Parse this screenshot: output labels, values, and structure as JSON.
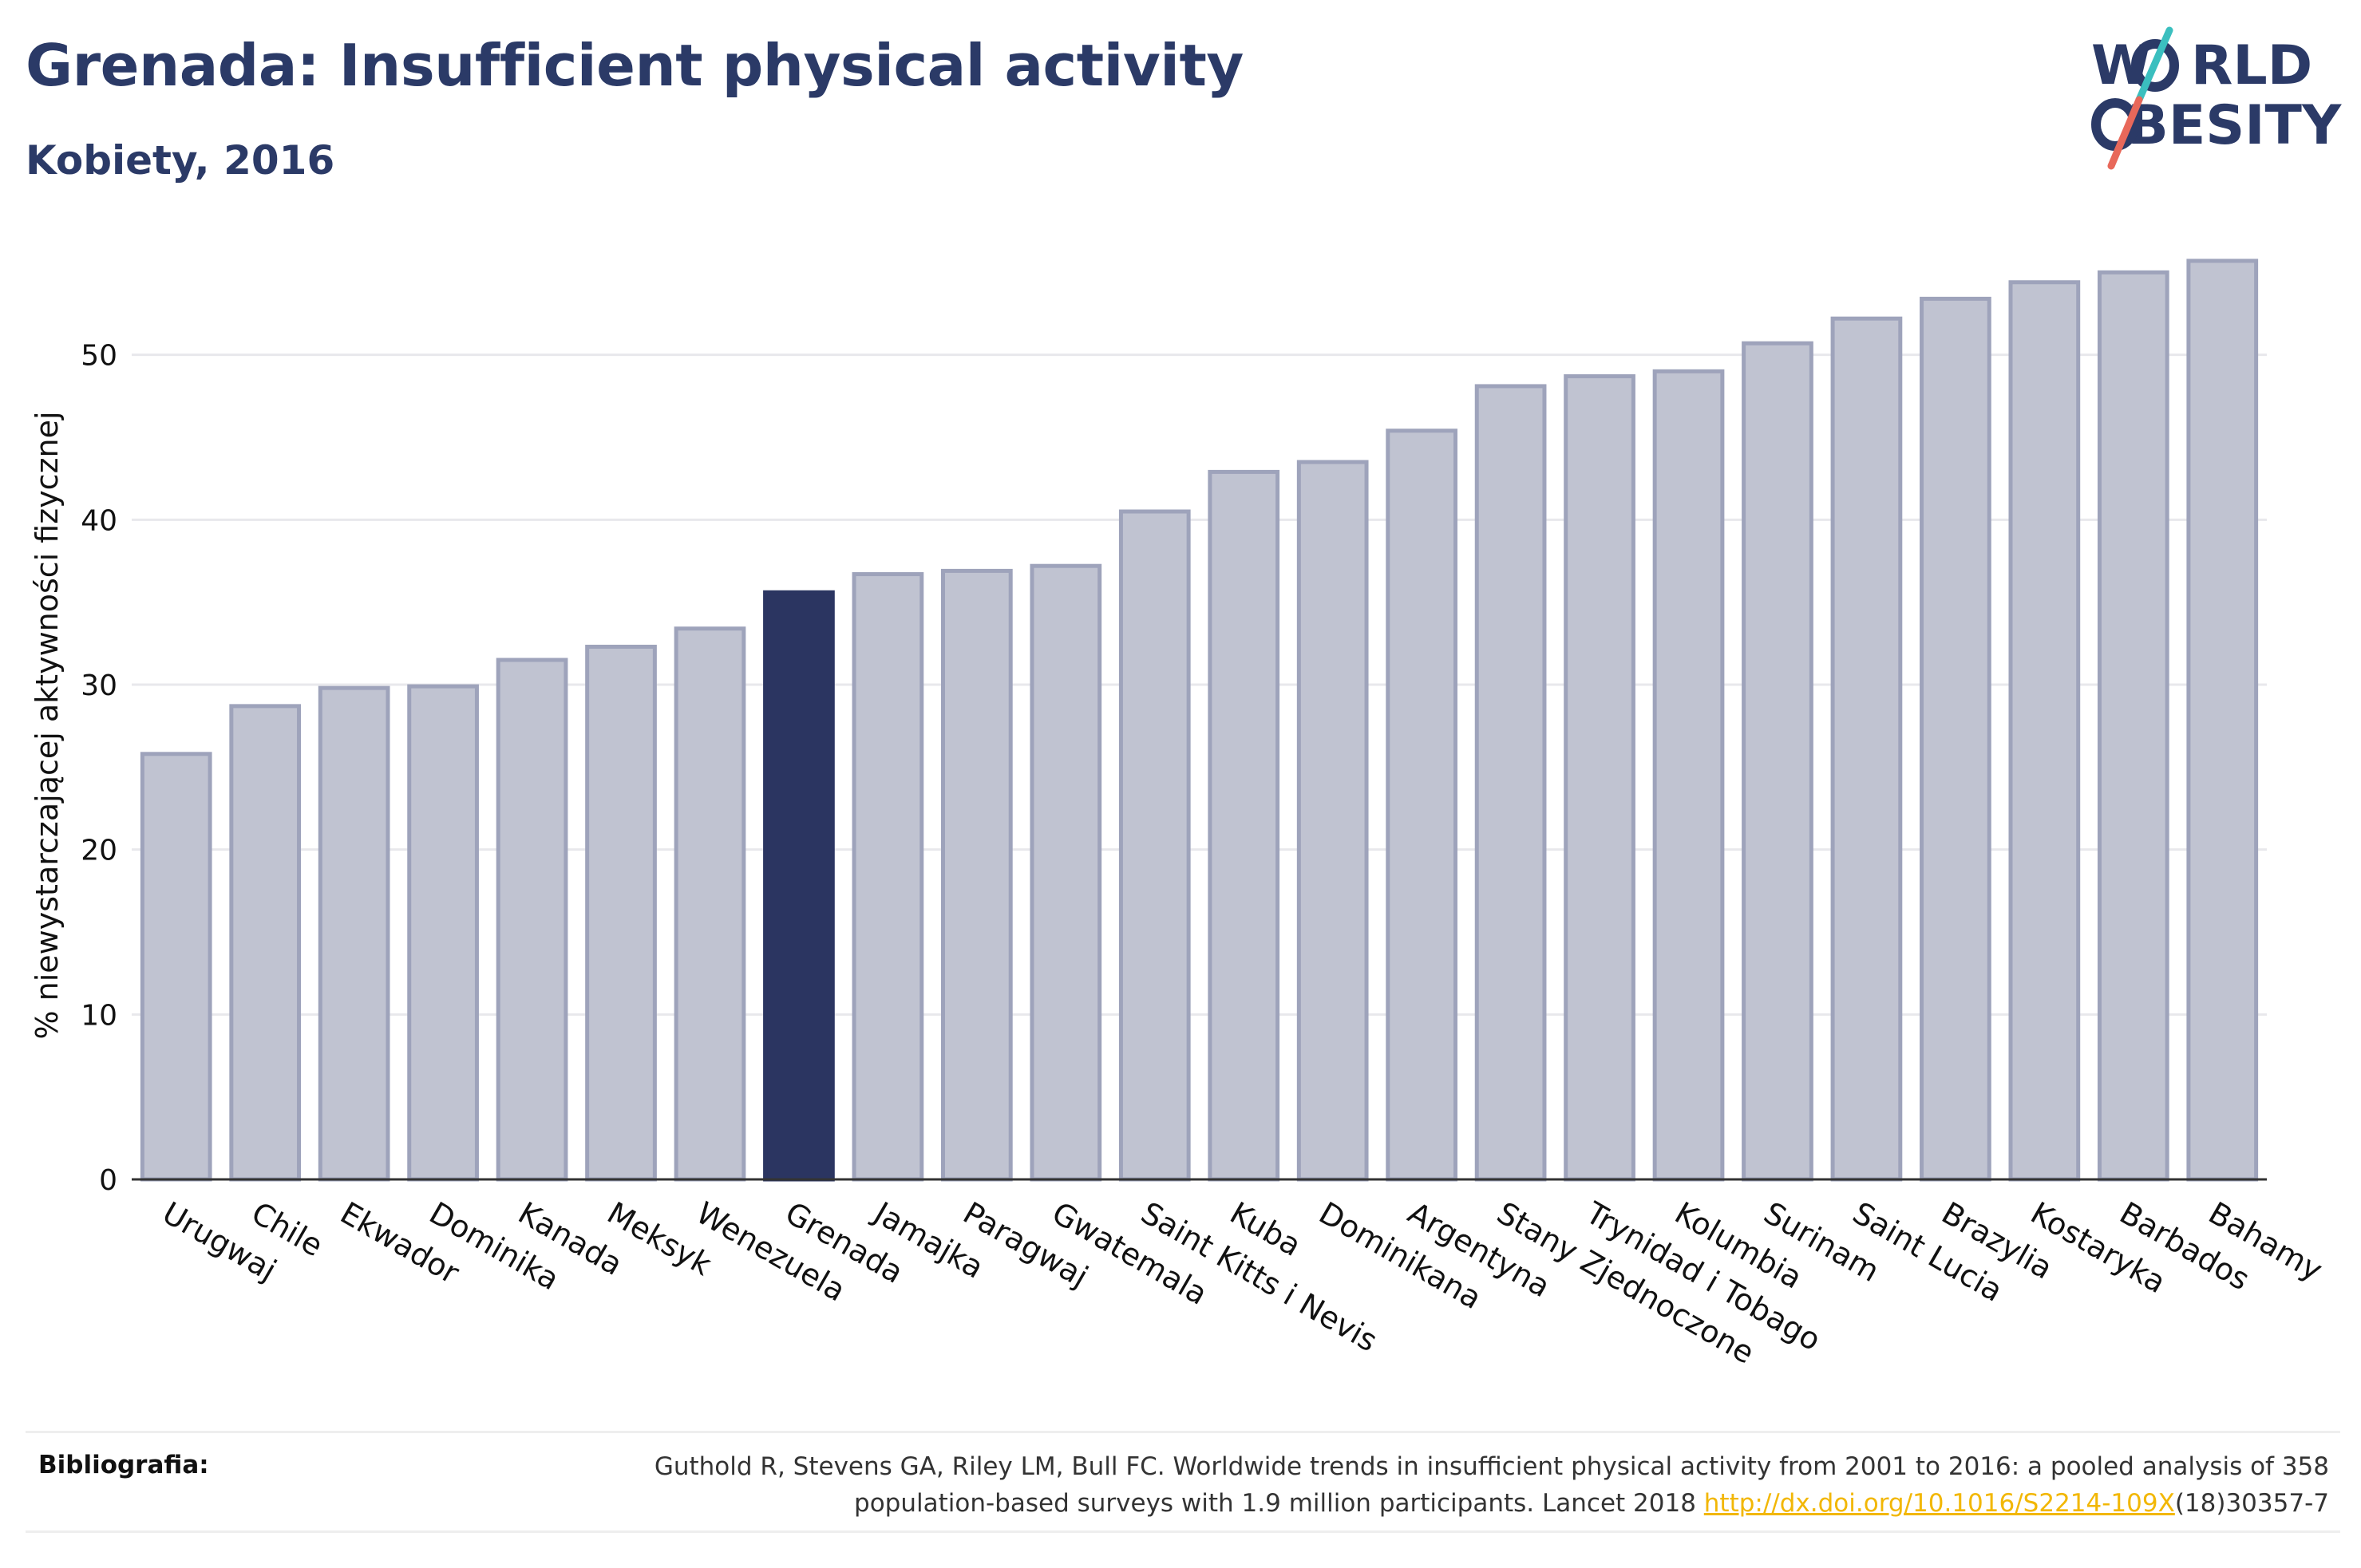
{
  "header": {
    "title": "Grenada: Insufficient physical activity",
    "subtitle": "Kobiety, 2016"
  },
  "logo": {
    "line1": "W",
    "line1b": "RLD",
    "line2": "BESITY",
    "accent_teal": "#3bbfbf",
    "accent_coral": "#e8685a",
    "color": "#2b3a67"
  },
  "chart_data": {
    "type": "bar",
    "ylabel": "% niewystarczającej aktywności fizycznej",
    "ylim": [
      0,
      57
    ],
    "yticks": [
      0,
      10,
      20,
      30,
      40,
      50
    ],
    "highlight": "Grenada",
    "bar_color": "#c0c3d1",
    "bar_border": "#9ea3bb",
    "highlight_color": "#2b3561",
    "grid": true,
    "categories": [
      "Urugwaj",
      "Chile",
      "Ekwador",
      "Dominika",
      "Kanada",
      "Meksyk",
      "Wenezuela",
      "Grenada",
      "Jamajka",
      "Paragwaj",
      "Gwatemala",
      "Saint Kitts i Nevis",
      "Kuba",
      "Dominikana",
      "Argentyna",
      "Stany Zjednoczone",
      "Trynidad i Tobago",
      "Kolumbia",
      "Surinam",
      "Saint Lucia",
      "Brazylia",
      "Kostaryka",
      "Barbados",
      "Bahamy"
    ],
    "values": [
      25.8,
      28.7,
      29.8,
      29.9,
      31.5,
      32.3,
      33.4,
      35.6,
      36.7,
      36.9,
      37.2,
      40.5,
      42.9,
      43.5,
      45.4,
      48.1,
      48.7,
      49.0,
      50.7,
      52.2,
      53.4,
      54.4,
      55.0,
      55.7
    ]
  },
  "footer": {
    "bib_label": "Bibliografia:",
    "bib_text_1": "Guthold R, Stevens GA, Riley LM, Bull FC. Worldwide trends in insufficient physical activity from 2001 to 2016: a pooled analysis of 358",
    "bib_text_2": "population-based surveys with 1.9 million participants. Lancet 2018 ",
    "bib_link": "http://dx.doi.org/10.1016/S2214-109X",
    "bib_text_3": "(18)30357-7"
  }
}
